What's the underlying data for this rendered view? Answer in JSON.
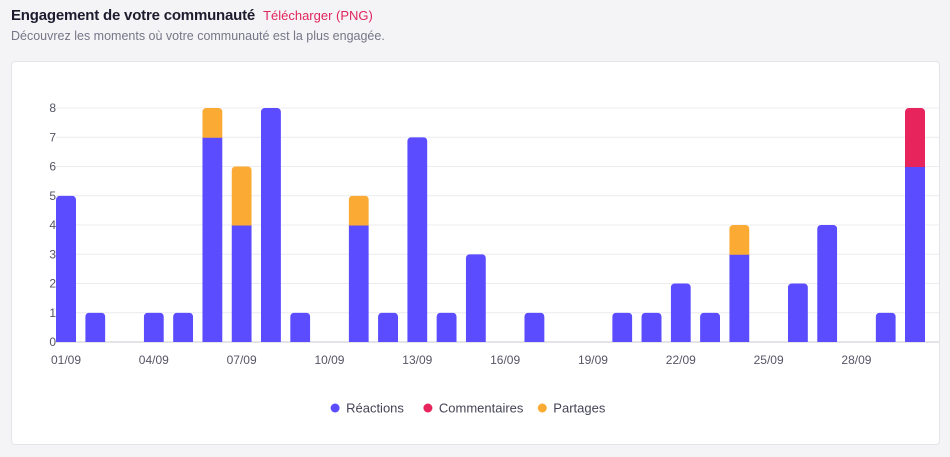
{
  "header": {
    "title": "Engagement de votre communauté",
    "download_label": "Télécharger (PNG)",
    "subtitle": "Découvrez les moments où votre communauté est la plus engagée."
  },
  "chart_data": {
    "type": "bar",
    "stacked": true,
    "categories": [
      "01/09",
      "02/09",
      "03/09",
      "04/09",
      "05/09",
      "06/09",
      "07/09",
      "08/09",
      "09/09",
      "10/09",
      "11/09",
      "12/09",
      "13/09",
      "14/09",
      "15/09",
      "16/09",
      "17/09",
      "18/09",
      "19/09",
      "20/09",
      "21/09",
      "22/09",
      "23/09",
      "24/09",
      "25/09",
      "26/09",
      "27/09",
      "28/09",
      "29/09",
      "30/09"
    ],
    "xtick_labels": [
      "01/09",
      "04/09",
      "07/09",
      "10/09",
      "13/09",
      "16/09",
      "19/09",
      "22/09",
      "25/09",
      "28/09"
    ],
    "yticks": [
      0,
      1,
      2,
      3,
      4,
      5,
      6,
      7,
      8
    ],
    "ylim": [
      0,
      8
    ],
    "grid": true,
    "legend": "bottom-center",
    "series": [
      {
        "name": "Réactions",
        "color": "#5b4cff",
        "values": [
          5,
          1,
          0,
          1,
          1,
          7,
          4,
          8,
          1,
          0,
          4,
          1,
          7,
          1,
          3,
          0,
          1,
          0,
          0,
          1,
          1,
          2,
          1,
          3,
          0,
          2,
          4,
          0,
          1,
          6
        ]
      },
      {
        "name": "Commentaires",
        "color": "#e8245c",
        "values": [
          0,
          0,
          0,
          0,
          0,
          0,
          0,
          0,
          0,
          0,
          0,
          0,
          0,
          0,
          0,
          0,
          0,
          0,
          0,
          0,
          0,
          0,
          0,
          0,
          0,
          0,
          0,
          0,
          0,
          2
        ]
      },
      {
        "name": "Partages",
        "color": "#fbab33",
        "values": [
          0,
          0,
          0,
          0,
          0,
          1,
          2,
          0,
          0,
          0,
          1,
          0,
          0,
          0,
          0,
          0,
          0,
          0,
          0,
          0,
          0,
          0,
          0,
          1,
          0,
          0,
          0,
          0,
          0,
          0
        ]
      }
    ]
  }
}
